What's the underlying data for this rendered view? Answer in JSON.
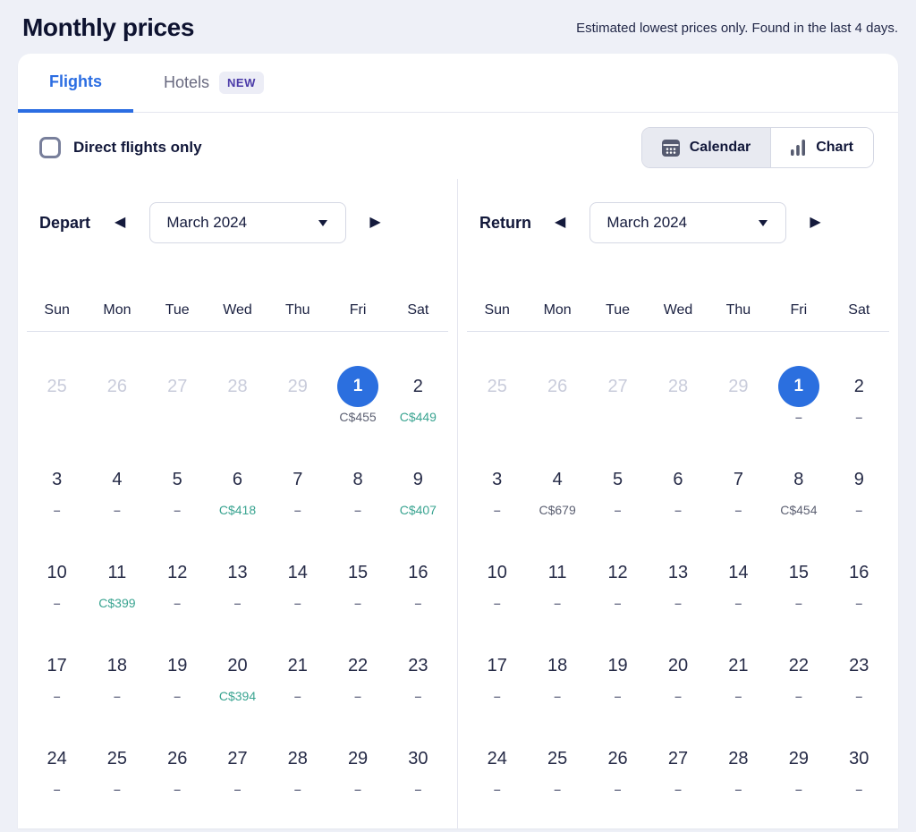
{
  "header": {
    "title": "Monthly prices",
    "subtitle": "Estimated lowest prices only. Found in the last 4 days."
  },
  "tabs": {
    "flights": "Flights",
    "hotels": "Hotels",
    "new_badge": "NEW",
    "active": "flights"
  },
  "controls": {
    "direct_label": "Direct flights only",
    "direct_checked": false,
    "view_calendar": "Calendar",
    "view_chart": "Chart",
    "view_selected": "calendar"
  },
  "icons": {
    "prev_month": "◀",
    "next_month": "▶"
  },
  "colors": {
    "page_bg": "#eef0f7",
    "accent_blue": "#2b6de2",
    "selected_day_bg": "#2b6fdf",
    "price_low_teal": "#3aa491",
    "price_muted_gray": "#5d6173"
  },
  "day_headers": [
    "Sun",
    "Mon",
    "Tue",
    "Wed",
    "Thu",
    "Fri",
    "Sat"
  ],
  "calendars": [
    {
      "label": "Depart",
      "month": "March 2024",
      "weeks": [
        [
          {
            "day": "25",
            "outside": true
          },
          {
            "day": "26",
            "outside": true
          },
          {
            "day": "27",
            "outside": true
          },
          {
            "day": "28",
            "outside": true
          },
          {
            "day": "29",
            "outside": true
          },
          {
            "day": "1",
            "selected": true,
            "price": "C$455",
            "price_color": "gray"
          },
          {
            "day": "2",
            "price": "C$449",
            "price_color": "teal"
          }
        ],
        [
          {
            "day": "3",
            "price": "–"
          },
          {
            "day": "4",
            "price": "–"
          },
          {
            "day": "5",
            "price": "–"
          },
          {
            "day": "6",
            "price": "C$418",
            "price_color": "teal"
          },
          {
            "day": "7",
            "price": "–"
          },
          {
            "day": "8",
            "price": "–"
          },
          {
            "day": "9",
            "price": "C$407",
            "price_color": "teal"
          }
        ],
        [
          {
            "day": "10",
            "price": "–"
          },
          {
            "day": "11",
            "price": "C$399",
            "price_color": "teal"
          },
          {
            "day": "12",
            "price": "–"
          },
          {
            "day": "13",
            "price": "–"
          },
          {
            "day": "14",
            "price": "–"
          },
          {
            "day": "15",
            "price": "–"
          },
          {
            "day": "16",
            "price": "–"
          }
        ],
        [
          {
            "day": "17",
            "price": "–"
          },
          {
            "day": "18",
            "price": "–"
          },
          {
            "day": "19",
            "price": "–"
          },
          {
            "day": "20",
            "price": "C$394",
            "price_color": "teal"
          },
          {
            "day": "21",
            "price": "–"
          },
          {
            "day": "22",
            "price": "–"
          },
          {
            "day": "23",
            "price": "–"
          }
        ],
        [
          {
            "day": "24",
            "price": "–"
          },
          {
            "day": "25",
            "price": "–"
          },
          {
            "day": "26",
            "price": "–"
          },
          {
            "day": "27",
            "price": "–"
          },
          {
            "day": "28",
            "price": "–"
          },
          {
            "day": "29",
            "price": "–"
          },
          {
            "day": "30",
            "price": "–"
          }
        ]
      ]
    },
    {
      "label": "Return",
      "month": "March 2024",
      "weeks": [
        [
          {
            "day": "25",
            "outside": true
          },
          {
            "day": "26",
            "outside": true
          },
          {
            "day": "27",
            "outside": true
          },
          {
            "day": "28",
            "outside": true
          },
          {
            "day": "29",
            "outside": true
          },
          {
            "day": "1",
            "selected": true,
            "price": "–"
          },
          {
            "day": "2",
            "price": "–"
          }
        ],
        [
          {
            "day": "3",
            "price": "–"
          },
          {
            "day": "4",
            "price": "C$679",
            "price_color": "gray"
          },
          {
            "day": "5",
            "price": "–"
          },
          {
            "day": "6",
            "price": "–"
          },
          {
            "day": "7",
            "price": "–"
          },
          {
            "day": "8",
            "price": "C$454",
            "price_color": "gray"
          },
          {
            "day": "9",
            "price": "–"
          }
        ],
        [
          {
            "day": "10",
            "price": "–"
          },
          {
            "day": "11",
            "price": "–"
          },
          {
            "day": "12",
            "price": "–"
          },
          {
            "day": "13",
            "price": "–"
          },
          {
            "day": "14",
            "price": "–"
          },
          {
            "day": "15",
            "price": "–"
          },
          {
            "day": "16",
            "price": "–"
          }
        ],
        [
          {
            "day": "17",
            "price": "–"
          },
          {
            "day": "18",
            "price": "–"
          },
          {
            "day": "19",
            "price": "–"
          },
          {
            "day": "20",
            "price": "–"
          },
          {
            "day": "21",
            "price": "–"
          },
          {
            "day": "22",
            "price": "–"
          },
          {
            "day": "23",
            "price": "–"
          }
        ],
        [
          {
            "day": "24",
            "price": "–"
          },
          {
            "day": "25",
            "price": "–"
          },
          {
            "day": "26",
            "price": "–"
          },
          {
            "day": "27",
            "price": "–"
          },
          {
            "day": "28",
            "price": "–"
          },
          {
            "day": "29",
            "price": "–"
          },
          {
            "day": "30",
            "price": "–"
          }
        ]
      ]
    }
  ]
}
